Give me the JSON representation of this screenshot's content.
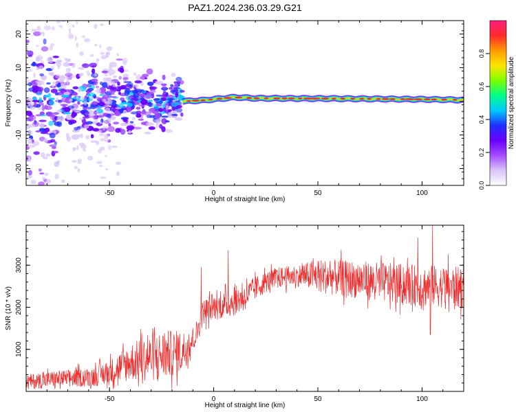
{
  "page_title": "PAZ1.2024.236.03.29.G21",
  "chart_data": [
    {
      "type": "heatmap",
      "title": "PAZ1.2024.236.03.29.G21",
      "xlabel": "Height of straight line (km)",
      "ylabel": "Frequency (Hz)",
      "xlim": [
        -90,
        120
      ],
      "ylim": [
        -25,
        24
      ],
      "x_ticks": [
        -50,
        0,
        50,
        100
      ],
      "y_ticks": [
        -20,
        -10,
        0,
        10,
        20
      ],
      "colorbar": {
        "label": "Normalized spectral amplitude",
        "range": [
          0.0,
          1.0
        ],
        "ticks": [
          0.0,
          0.2,
          0.4,
          0.6,
          0.8
        ],
        "tick_labels": [
          "0.0",
          "0.2",
          "0.4",
          "0.6",
          "0.8"
        ],
        "colors": [
          "#ffffff",
          "#d9c6f7",
          "#a64dff",
          "#6a00ff",
          "#1f2fff",
          "#00c8ff",
          "#00ff88",
          "#7bff00",
          "#ffe600",
          "#ff9900",
          "#ff2a2a",
          "#ff1c7c"
        ]
      },
      "features": [
        {
          "name": "noise_region",
          "x_range": [
            -90,
            -15
          ],
          "freq_spread_hz": 6,
          "amplitude": 0.3
        },
        {
          "name": "carrier_line",
          "x_range": [
            -15,
            120
          ],
          "freq_hz": [
            [
              -15,
              0
            ],
            [
              -5,
              0.3
            ],
            [
              10,
              1.2
            ],
            [
              20,
              0.9
            ],
            [
              60,
              0.8
            ],
            [
              100,
              0.6
            ],
            [
              120,
              0.4
            ]
          ],
          "amplitude": 0.9
        }
      ]
    },
    {
      "type": "line",
      "xlabel": "Height of straight line (km)",
      "ylabel": "SNR (10 * v/v)",
      "xlim": [
        -90,
        120
      ],
      "ylim": [
        0,
        3950
      ],
      "x_ticks": [
        -50,
        0,
        50,
        100
      ],
      "y_ticks": [
        1000,
        2000,
        3000
      ],
      "color": "#ee2a2a",
      "trend": {
        "x": [
          -90,
          -75,
          -60,
          -50,
          -40,
          -30,
          -20,
          -15,
          -12,
          -8,
          -5,
          0,
          5,
          10,
          15,
          20,
          25,
          30,
          40,
          50,
          60,
          70,
          80,
          90,
          100,
          110,
          120
        ],
        "y": [
          220,
          300,
          330,
          450,
          700,
          800,
          900,
          950,
          1100,
          1400,
          1900,
          2000,
          2050,
          2150,
          2250,
          2450,
          2600,
          2700,
          2750,
          2750,
          2700,
          2650,
          2600,
          2550,
          2500,
          2500,
          2450
        ]
      },
      "noise_amplitude": {
        "x": [
          -90,
          -60,
          -50,
          -40,
          -25,
          -15,
          -10,
          0,
          10,
          25,
          40,
          50,
          70,
          100,
          120
        ],
        "y": [
          180,
          220,
          300,
          450,
          600,
          500,
          300,
          300,
          350,
          250,
          250,
          400,
          450,
          500,
          500
        ]
      },
      "extremes": [
        {
          "x": -6,
          "y": 2950
        },
        {
          "x": 7,
          "y": 3350
        },
        {
          "x": 98,
          "y": 3650
        },
        {
          "x": 105,
          "y": 3950
        },
        {
          "x": 104,
          "y": 1350
        }
      ]
    }
  ]
}
